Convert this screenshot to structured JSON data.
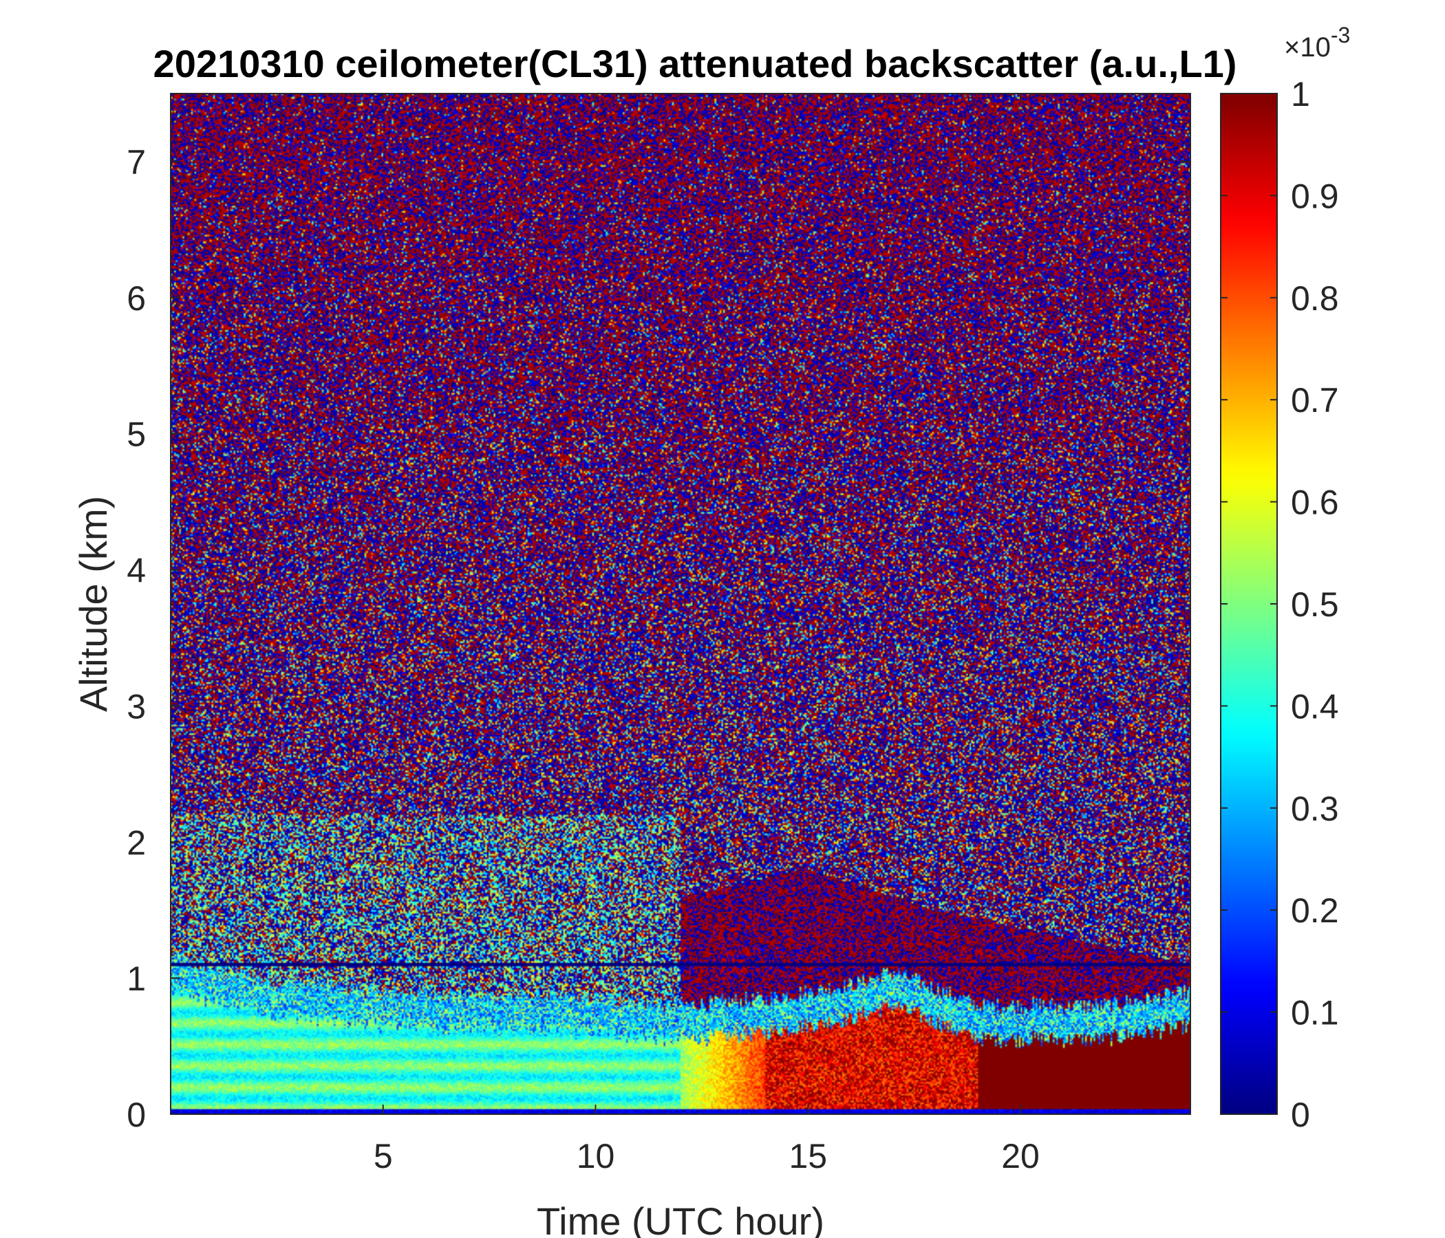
{
  "chart_data": {
    "type": "heatmap",
    "title": "20210310 ceilometer(CL31) attenuated backscatter (a.u.,L1)",
    "xlabel": "Time (UTC hour)",
    "ylabel": "Altitude (km)",
    "xlim": [
      0,
      24
    ],
    "ylim": [
      0,
      7.5
    ],
    "xticks": [
      5,
      10,
      15,
      20
    ],
    "yticks": [
      0,
      1,
      2,
      3,
      4,
      5,
      6,
      7
    ],
    "colorbar": {
      "colormap": "jet",
      "clim": [
        0,
        1
      ],
      "ticks": [
        0,
        0.1,
        0.2,
        0.3,
        0.4,
        0.5,
        0.6,
        0.7,
        0.8,
        0.9,
        1
      ],
      "tick_labels": [
        "0",
        "0.1",
        "0.2",
        "0.3",
        "0.4",
        "0.5",
        "0.6",
        "0.7",
        "0.8",
        "0.9",
        "1"
      ],
      "exponent_base": "×10",
      "exponent_power": "-3"
    },
    "features": {
      "boundary_layer_top_km": [
        {
          "hour": 0,
          "top": 0.9
        },
        {
          "hour": 2,
          "top": 0.75
        },
        {
          "hour": 5,
          "top": 0.65
        },
        {
          "hour": 10,
          "top": 0.6
        },
        {
          "hour": 12,
          "top": 0.55
        },
        {
          "hour": 14,
          "top": 0.6
        },
        {
          "hour": 16,
          "top": 0.7
        },
        {
          "hour": 17,
          "top": 0.8
        },
        {
          "hour": 19,
          "top": 0.55
        },
        {
          "hour": 22,
          "top": 0.55
        },
        {
          "hour": 24,
          "top": 0.65
        }
      ],
      "upper_layer_km": [
        {
          "hour": 12,
          "top": 1.6
        },
        {
          "hour": 15,
          "top": 1.8
        },
        {
          "hour": 18,
          "top": 1.5
        },
        {
          "hour": 21,
          "top": 1.3
        },
        {
          "hour": 24,
          "top": 1.1
        }
      ],
      "horizontal_line_km": 1.1
    }
  }
}
